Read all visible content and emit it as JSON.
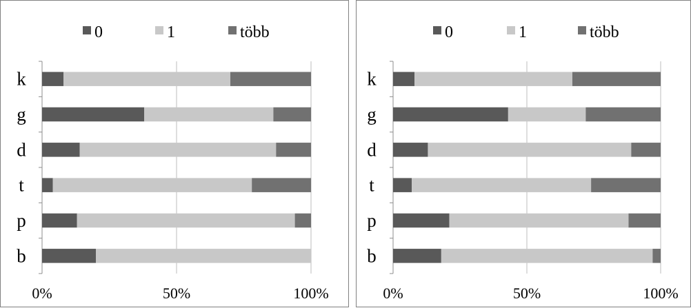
{
  "chart_data": [
    {
      "type": "bar",
      "orientation": "horizontal",
      "stacked": "100%",
      "categories": [
        "k",
        "g",
        "d",
        "t",
        "p",
        "b"
      ],
      "series": [
        {
          "name": "0",
          "color": "#595959",
          "values": [
            8,
            38,
            14,
            4,
            13,
            20
          ]
        },
        {
          "name": "1",
          "color": "#c8c8c8",
          "values": [
            62,
            48,
            73,
            74,
            81,
            80
          ]
        },
        {
          "name": "több",
          "color": "#717171",
          "values": [
            30,
            14,
            13,
            22,
            6,
            0
          ]
        }
      ],
      "x_ticks": [
        "0%",
        "50%",
        "100%"
      ],
      "xlim": [
        0,
        100
      ],
      "grid": "vertical gridlines",
      "legend_position": "top"
    },
    {
      "type": "bar",
      "orientation": "horizontal",
      "stacked": "100%",
      "categories": [
        "k",
        "g",
        "d",
        "t",
        "p",
        "b"
      ],
      "series": [
        {
          "name": "0",
          "color": "#595959",
          "values": [
            8,
            43,
            13,
            7,
            21,
            18
          ]
        },
        {
          "name": "1",
          "color": "#c8c8c8",
          "values": [
            59,
            29,
            76,
            67,
            67,
            79
          ]
        },
        {
          "name": "több",
          "color": "#717171",
          "values": [
            33,
            28,
            11,
            26,
            12,
            3
          ]
        }
      ],
      "x_ticks": [
        "0%",
        "50%",
        "100%"
      ],
      "xlim": [
        0,
        100
      ],
      "grid": "vertical gridlines",
      "legend_position": "top"
    }
  ]
}
